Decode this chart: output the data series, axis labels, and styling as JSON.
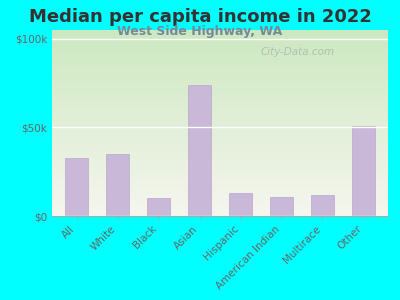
{
  "title": "Median per capita income in 2022",
  "subtitle": "West Side Highway, WA",
  "categories": [
    "All",
    "White",
    "Black",
    "Asian",
    "Hispanic",
    "American Indian",
    "Multirace",
    "Other"
  ],
  "values": [
    33000,
    35000,
    10000,
    74000,
    13000,
    11000,
    12000,
    51000
  ],
  "bar_color": "#c9b8d8",
  "bar_edge_color": "#b8a8cc",
  "title_fontsize": 13,
  "subtitle_fontsize": 9,
  "tick_label_fontsize": 7.5,
  "axis_label_color": "#666666",
  "title_color": "#333333",
  "subtitle_color": "#778899",
  "background_outer": "#00FFFF",
  "grad_top": "#cce8c0",
  "grad_bottom": "#f5f5ee",
  "yticks": [
    0,
    50000,
    100000
  ],
  "ytick_labels": [
    "$0",
    "$50k",
    "$100k"
  ],
  "ylim": [
    0,
    105000
  ],
  "watermark": "City-Data.com"
}
